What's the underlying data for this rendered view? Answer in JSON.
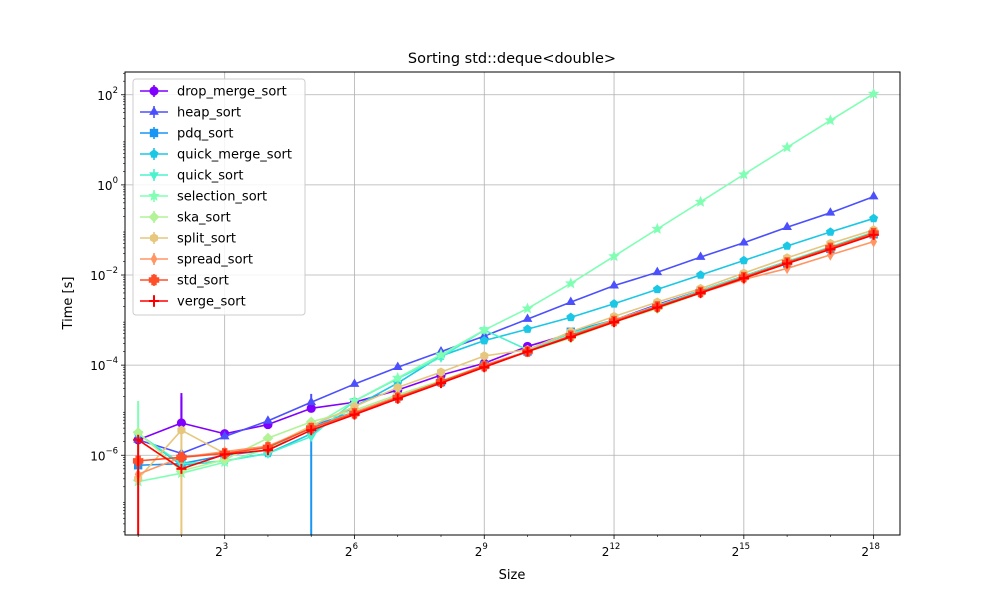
{
  "chart_data": {
    "type": "line",
    "title": "Sorting std::deque<double>",
    "xlabel": "Size",
    "ylabel": "Time [s]",
    "xscale": "log2",
    "yscale": "log10",
    "xlim": [
      1.62,
      400000.0
    ],
    "ylim": [
      1.7e-08,
      320.0
    ],
    "grid": true,
    "legend_position": "top-left",
    "x_ticks": [
      {
        "value": 8,
        "base": "2",
        "exp": "3"
      },
      {
        "value": 64,
        "base": "2",
        "exp": "6"
      },
      {
        "value": 512,
        "base": "2",
        "exp": "9"
      },
      {
        "value": 4096,
        "base": "2",
        "exp": "12"
      },
      {
        "value": 32768,
        "base": "2",
        "exp": "15"
      },
      {
        "value": 262144,
        "base": "2",
        "exp": "18"
      }
    ],
    "y_ticks": [
      {
        "value": 1e-06,
        "base": "10",
        "exp": "−6"
      },
      {
        "value": 0.0001,
        "base": "10",
        "exp": "−4"
      },
      {
        "value": 0.01,
        "base": "10",
        "exp": "−2"
      },
      {
        "value": 1,
        "base": "10",
        "exp": "0"
      },
      {
        "value": 100,
        "base": "10",
        "exp": "2"
      }
    ],
    "x": [
      2,
      4,
      8,
      16,
      32,
      64,
      128,
      256,
      512,
      1024,
      2048,
      4096,
      8192,
      16384,
      32768,
      65536,
      131072,
      262144
    ],
    "series": [
      {
        "name": "drop_merge_sort",
        "color": "#8000ff",
        "marker": "circle",
        "values": [
          2.2e-06,
          5.2e-06,
          3e-06,
          4.8e-06,
          1.1e-05,
          1.5e-05,
          2.8e-05,
          6e-05,
          0.00011,
          0.00026,
          0.0005,
          0.001,
          0.0022,
          0.0045,
          0.0095,
          0.02,
          0.04,
          0.085
        ],
        "err": [
          [
            1,
            2e-05
          ],
          [
            1,
            2.4e-05
          ]
        ]
      },
      {
        "name": "heap_sort",
        "color": "#4c50fc",
        "marker": "triangle",
        "values": [
          2.2e-06,
          1.1e-06,
          2.6e-06,
          5.8e-06,
          1.5e-05,
          3.8e-05,
          9e-05,
          0.0002,
          0.00044,
          0.00105,
          0.0025,
          0.0058,
          0.0115,
          0.025,
          0.052,
          0.115,
          0.24,
          0.55
        ],
        "err": [
          [
            4,
            2.3e-05
          ]
        ]
      },
      {
        "name": "pdq_sort",
        "color": "#1996f3",
        "marker": "square",
        "values": [
          6e-07,
          6.5e-07,
          1e-06,
          1.3e-06,
          4.5e-06,
          9e-06,
          2e-05,
          4.2e-05,
          0.0001,
          0.0002,
          0.00055,
          0.001,
          0.0021,
          0.0044,
          0.0095,
          0.018,
          0.038,
          0.08
        ],
        "err": [
          [
            4,
            1.7e-08
          ]
        ]
      },
      {
        "name": "quick_merge_sort",
        "color": "#1ac7e5",
        "marker": "pentagon",
        "values": [
          3e-06,
          6e-07,
          7.5e-07,
          1.1e-06,
          3e-06,
          1.2e-05,
          4e-05,
          0.00016,
          0.00035,
          0.00063,
          0.00115,
          0.0023,
          0.0048,
          0.01,
          0.021,
          0.044,
          0.09,
          0.18
        ],
        "err": []
      },
      {
        "name": "quick_sort",
        "color": "#4cf2ce",
        "marker": "triangle-down",
        "values": [
          3e-06,
          6.5e-07,
          7.5e-07,
          1.1e-06,
          2.6e-06,
          1.6e-05,
          5e-05,
          0.00015,
          0.0006,
          0.00022,
          0.0005,
          0.001,
          0.0021,
          0.0045,
          0.0095,
          0.02,
          0.042,
          0.09
        ],
        "err": []
      },
      {
        "name": "selection_sort",
        "color": "#80ffb4",
        "marker": "star",
        "values": [
          2.6e-07,
          4e-07,
          7e-07,
          1.4e-06,
          4.2e-06,
          1.6e-05,
          5.2e-05,
          0.00017,
          0.0006,
          0.0018,
          0.0065,
          0.026,
          0.105,
          0.42,
          1.7,
          6.8,
          27.0,
          105.0
        ],
        "err": [
          [
            0,
            1.6e-05
          ]
        ]
      },
      {
        "name": "ska_sort",
        "color": "#b2f396",
        "marker": "diamond",
        "values": [
          3.2e-06,
          4.5e-07,
          8e-07,
          2.4e-06,
          5.5e-06,
          1e-05,
          2.2e-05,
          4.5e-05,
          0.0001,
          0.0002,
          0.0004,
          0.0009,
          0.0018,
          0.004,
          0.0085,
          0.018,
          0.038,
          0.08
        ],
        "err": []
      },
      {
        "name": "split_sort",
        "color": "#e6c77d",
        "marker": "hexagon",
        "values": [
          3e-07,
          3.6e-06,
          1.1e-06,
          1.5e-06,
          4.5e-06,
          1.2e-05,
          3.2e-05,
          7e-05,
          0.00016,
          0.00022,
          0.00055,
          0.0012,
          0.0025,
          0.005,
          0.011,
          0.024,
          0.05,
          0.1
        ],
        "err": [
          [
            1,
            1.7e-08
          ]
        ]
      },
      {
        "name": "spread_sort",
        "color": "#ff9664",
        "marker": "thin-diamond",
        "values": [
          3.8e-07,
          9e-07,
          1.2e-06,
          1.6e-06,
          4e-06,
          9e-06,
          2e-05,
          4.2e-05,
          0.0001,
          0.0002,
          0.00045,
          0.001,
          0.002,
          0.004,
          0.008,
          0.014,
          0.028,
          0.055
        ],
        "err": []
      },
      {
        "name": "std_sort",
        "color": "#ff4f28",
        "marker": "plus-filled",
        "values": [
          7.5e-07,
          9e-07,
          1.1e-06,
          1.5e-06,
          4e-06,
          8.5e-06,
          1.9e-05,
          4.3e-05,
          9.5e-05,
          0.0002,
          0.00045,
          0.00095,
          0.002,
          0.0042,
          0.009,
          0.019,
          0.04,
          0.085
        ],
        "err": []
      },
      {
        "name": "verge_sort",
        "color": "#ff0000",
        "marker": "plus",
        "values": [
          2.2e-06,
          5e-07,
          1.05e-06,
          1.3e-06,
          3.6e-06,
          8e-06,
          1.8e-05,
          4e-05,
          9e-05,
          0.0002,
          0.00042,
          0.0009,
          0.0019,
          0.004,
          0.0085,
          0.018,
          0.037,
          0.078
        ],
        "err": [
          [
            0,
            1.7e-08
          ]
        ]
      }
    ]
  }
}
